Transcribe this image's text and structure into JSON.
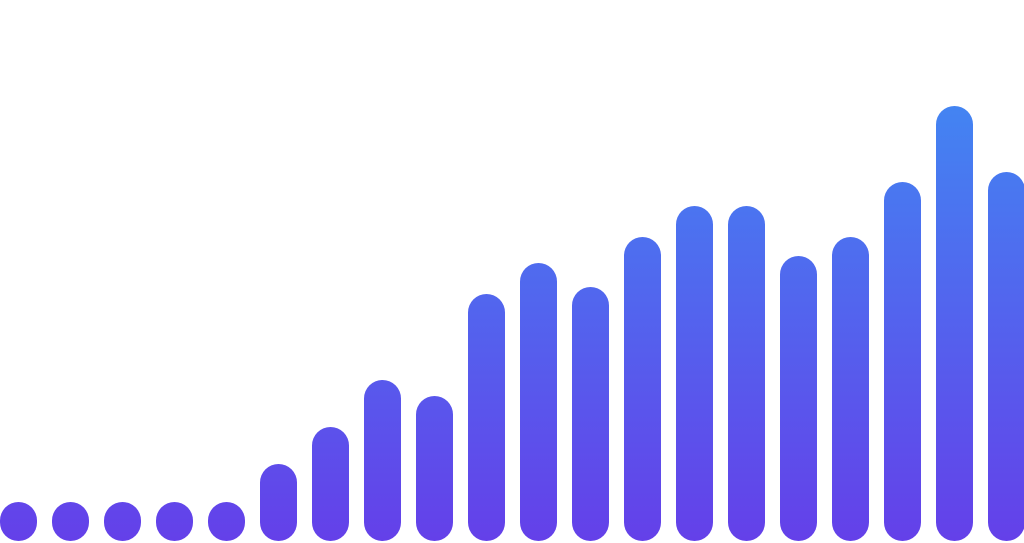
{
  "chart_data": {
    "type": "bar",
    "categories": [
      null,
      null,
      null,
      null,
      null,
      null,
      null,
      null,
      null,
      null,
      null,
      null,
      null,
      null,
      null,
      null,
      null,
      null,
      null,
      null
    ],
    "values": [
      0,
      0,
      0,
      0,
      0,
      38,
      75,
      122,
      106,
      208,
      239,
      215,
      265,
      296,
      296,
      246,
      265,
      320,
      396,
      330
    ],
    "ylim": [
      0,
      396
    ],
    "gradient": [
      "#4384f2",
      "#6440e9"
    ]
  }
}
